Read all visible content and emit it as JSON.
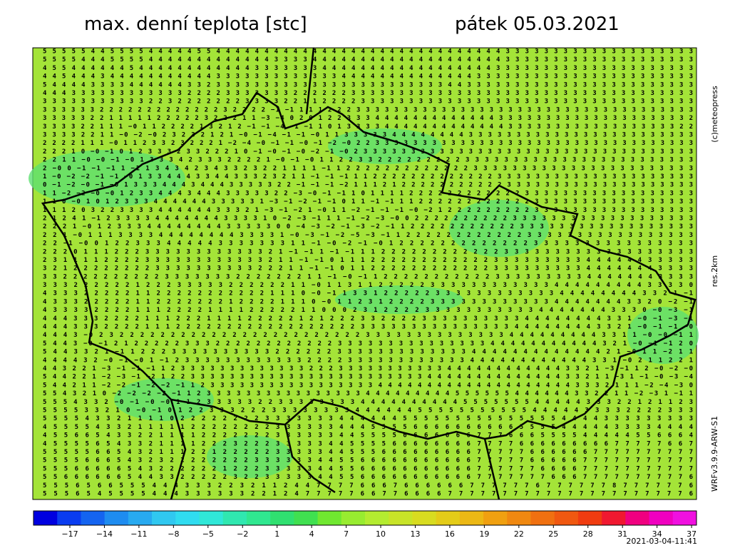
{
  "header": {
    "title": "max. denní teplota [stc]",
    "date": "pátek 05.03.2021"
  },
  "side": {
    "copyright": "(c)meteopress",
    "resolution": "res.2km",
    "model": "WRFv3.9.9-ARW-S1"
  },
  "timestamp": "2021-03-04-11:41",
  "colorbar": {
    "colors": [
      "#0000e0",
      "#0a3cf0",
      "#1464f0",
      "#1e8cf0",
      "#28aaf0",
      "#30c8f0",
      "#30dcf0",
      "#30e8d8",
      "#30e8b0",
      "#30e890",
      "#30e070",
      "#40e050",
      "#70e830",
      "#98ec30",
      "#b4ec30",
      "#c8e428",
      "#d8dc20",
      "#e4cc18",
      "#ecb814",
      "#f0a010",
      "#f08810",
      "#f07010",
      "#f05810",
      "#f03c10",
      "#f01830",
      "#f00080",
      "#f000c0",
      "#f010e0"
    ],
    "labels": [
      "−17",
      "−14",
      "−11",
      "−8",
      "−5",
      "−2",
      "1",
      "4",
      "7",
      "10",
      "13",
      "16",
      "19",
      "22",
      "25",
      "28",
      "31",
      "34",
      "37"
    ]
  },
  "grid": {
    "rows": [
      "5 5 5 5 5 4 4 5 5 5 5 4 4 4 4 4 5 5 4 4 4 4 4 4 4 4 4 4 4 4 4 4 4 4 4 4 4 4 4 4 4 4 4 4 4 4 4 4 3 3 3 3 3 3 3 3 3 3 3 3 3 3 3 3 3 3 3 3",
      "5 5 5 5 4 4 4 5 5 5 5 4 4 4 4 4 4 4 4 4 4 4 4 4 3 3 3 3 4 4 4 4 4 4 4 4 4 4 4 4 4 4 4 4 4 4 4 4 3 3 3 3 3 3 3 3 3 3 3 3 3 3 3 3 3 3 3 3",
      "4 5 5 4 4 4 4 4 4 5 4 4 4 4 4 4 4 4 4 4 4 4 3 3 3 3 3 3 3 4 4 4 4 4 4 4 4 4 4 4 4 4 4 4 4 4 4 3 3 3 3 3 3 3 3 3 3 3 3 3 3 3 3 3 3 3 3 3",
      "4 4 5 4 4 4 3 4 4 4 4 4 4 4 4 4 4 4 3 3 3 3 3 3 3 3 3 3 3 3 3 4 4 4 4 4 4 4 4 4 4 4 4 4 4 3 3 3 3 3 3 3 3 3 3 3 3 3 3 3 3 3 3 3 3 3 3 3",
      "5 4 4 4 4 3 3 3 3 4 4 4 4 4 4 3 3 2 3 3 3 3 3 3 3 3 3 3 3 3 3 3 3 3 3 3 3 3 3 3 3 3 4 4 3 3 3 3 3 3 3 3 3 3 3 3 3 3 3 3 3 3 3 3 3 3 3 3",
      "4 4 4 3 3 3 3 3 3 3 3 3 3 3 3 2 2 2 2 3 3 3 3 3 3 3 2 2 2 2 2 2 3 3 3 3 3 3 3 3 3 3 3 3 3 3 3 3 3 3 3 3 3 3 3 3 3 3 3 3 3 3 3 3 3 3 3 3",
      "3 3 3 3 3 3 3 3 3 3 3 2 2 3 2 2 2 2 2 2 2 3 3 3 3 2 2 1 1 2 2 2 2 3 3 3 3 3 3 3 3 3 3 3 3 3 3 3 3 3 3 3 3 3 3 3 3 3 3 3 3 3 3 3 3 3 3 3",
      "3 3 3 3 3 3 2 2 2 2 2 2 2 2 2 2 2 2 2 3 2 2 2 2 −1 −1 1 1 1 2 2 2 3 3 3 3 3 3 3 3 3 3 3 3 3 3 3 3 3 3 3 3 3 3 3 3 3 3 3 3 3 3 3 3 3 3 3 3",
      "3 3 3 3 3 2 2 1 1 1 1 1 2 2 2 2 2 3 2 2 2 1 1 −3 −4 0 2 0 1 2 2 3 3 3 4 4 4 4 4 4 4 4 4 4 4 4 4 3 3 3 3 3 3 3 3 3 3 3 3 3 3 3 3 3 3 3 3 2",
      "3 3 3 3 2 2 1 1 1 −0 1 1 2 2 2 2 1 3 2 1 2 −1 −1 −4 −1 −1 1 0 1 3 3 3 3 4 4 4 4 4 4 4 4 4 4 4 4 4 3 3 3 3 3 3 3 3 3 3 3 3 3 3 3 3 3 3 2 2",
      "3 3 3 3 2 2 1 1 −0 −2 −0 2 3 2 3 2 1 2 1 −0 −1 −4 −1 −1 −0 1 1 3 3 3 3 3 4 4 4 4 4 4 4 4 3 3 3 3 3 3 3 3 3 3 3 3 3 3 3 3 3 3 3 3 3 3 3 3",
      "2 2 2 2 1 1 1 −0 1 1 2 3 3 2 3 2 2 2 1 −2 −4 −0 −1 −1 −0 −1 −2 −0 2 2 3 3 3 3 3 3 3 3 3 3 3 3 3 3 3 3 3 3 3 3 3 3 3 3 3 3 3 3 3 3 3 3 3 3",
      "2 2 2 1 0 −0 −1 0 1 2 3 3 3 2 3 3 2 2 2 1 0 −1 −0 −1 −0 −2 −1 −0 2 3 3 3 3 3 3 3 3 3 3 3 3 3 3 3 3 3 3 3 3 3 3 3 3 3 3 3 3 3 3 3 3 3 3 3",
      "2 2 1 1 −0 −0 −1 −0 1 3 3 3 4 2 3 3 3 2 2 2 2 1 −0 −1 −0 1 1 2 2 3 3 2 2 2 2 2 2 2 2 2 3 3 3 3 3 3 3 3 3 3 3 3 3 3 3 3 3 3 3 3 3 3 3 3",
      "2 −0 0 −1 −1 −1 1 −1 1 3 4 3 4 2 3 4 3 3 2 3 2 2 1 1 1 1 −1 1 2 2 2 2 2 2 2 2 2 2 2 2 2 3 3 3 3 3 3 3 3 3 3 3 3 3 3 3 3 3 3 3 3 3 3 3",
      "1 −0 −2 −2 −1 −1 −0 1 3 3 4 4 4 3 3 4 4 3 3 3 2 3 2 1 1 −1 −1 −1 1 1 2 2 2 2 2 2 2 2 2 2 2 2 2 3 3 3 3 3 3 3 3 3 3 3 3 3 3 3 3 3 3 3 3 3",
      "0 −1 −2 −0 −1 −0 1 3 3 3 4 4 4 3 4 4 4 3 3 3 3 3 2 2 −1 −1 −1 −2 1 1 1 2 1 2 2 2 2 2 2 2 2 2 2 2 3 3 3 3 3 3 3 3 3 3 3 3 3 3 3 3 3 3 3 3",
      "1 1 −2 −2 −0 −0 1 2 3 3 4 4 4 3 4 4 4 3 3 3 3 3 2 2 −3 −0 −1 −1 1 0 1 1 1 1 2 2 2 2 2 2 2 2 2 2 2 2 3 3 3 3 3 3 3 3 3 3 3 3 3 3 3 3 3 3",
      "1 1 0 −0 1 0 1 2 3 3 3 4 4 4 4 4 4 3 3 3 3 3 1 −3 −1 −2 −1 −1 0 1 1 −1 −1 1 1 2 2 2 2 2 2 2 2 2 2 2 2 3 3 3 3 3 3 3 3 3 3 3 3 3 3 3 3 3",
      "1 1 1 2 0 3 2 2 3 3 3 3 4 4 4 4 4 4 3 3 3 2 1 −3 −1 −2 1 −0 1 1 −2 −1 −1 −1 −0 −2 1 2 2 2 2 2 2 2 2 2 3 3 3 3 3 3 3 3 3 3 3 3 3 3 3 3 3",
      "2 1 2 4 1 −1 2 3 3 3 3 4 4 4 4 4 4 4 3 3 3 3 1 0 −2 −3 −1 1 1 −1 −2 −3 −0 0 2 2 2 2 2 2 2 2 2 2 3 3 3 3 3 3 3 3 3 3 3 3 3 3 3 3 3 3 3",
      "2 2 2 1 −0 1 2 3 3 3 4 4 4 4 4 4 4 4 3 3 3 3 3 0 0 −4 −3 −2 −1 −3 −2 −1 1 2 2 2 2 2 2 2 2 2 2 2 3 3 3 3 3 3 3 3 3 3 3 3 3 3 3 3 3 3",
      "2 2 1 −0 1 1 1 3 3 3 3 4 4 4 4 4 4 4 4 3 3 3 3 1 −0 −3 −1 −2 −5 −3 −1 1 2 2 2 2 2 2 2 2 2 2 2 2 3 3 3 3 3 3 3 3 3 3 3 3 3 3 3 3 3",
      "2 2 −1 −0 0 1 2 2 3 3 3 4 4 4 4 4 3 3 3 3 3 3 3 1 1 −1 −0 −2 −1 −0 1 2 2 2 2 2 2 2 2 2 2 2 2 2 3 3 3 3 3 3 3 3 3 3 3 3 3 3 3 3",
      "2 2 2 0 1 1 1 2 2 2 3 3 3 3 3 3 3 3 3 3 3 3 2 1 −1 −1 1 −1 −1 1 1 2 2 2 2 2 2 2 2 2 2 2 2 3 3 3 3 3 3 3 3 3 3 3 3 3 3 3 3 3 3 3",
      "2 3 1 1 1 1 2 2 2 2 3 3 3 3 3 3 3 3 3 3 3 3 2 1 1 −1 −1 0 1 1 1 2 2 2 2 2 2 2 2 2 2 2 2 3 3 3 3 3 3 3 3 3 4 4 4 4 4 4 3 3 3 3 3",
      "3 2 1 2 2 2 2 2 2 2 2 3 3 3 3 3 3 3 3 3 3 2 2 2 1 1 −1 −1 0 1 1 2 2 2 2 2 2 2 2 2 2 2 2 3 3 3 3 3 3 3 3 3 4 4 4 4 4 4 4 3 3 3 3",
      "3 3 2 2 2 2 2 2 2 2 2 2 3 3 3 3 3 3 3 2 2 2 2 2 2 2 1 1 −1 −0 −1 1 2 2 2 2 2 2 2 2 2 2 2 3 3 3 3 3 3 3 3 3 4 4 4 4 4 4 4 3 3 3 3",
      "3 3 3 2 2 2 2 2 2 1 2 2 2 3 3 3 3 3 2 2 2 2 2 2 1 1 −0 1 1 3 1 1 2 2 2 2 2 3 3 3 3 3 3 3 3 3 3 3 3 4 4 4 4 4 4 4 4 4 3 3 3 3 0",
      "4 3 3 3 2 2 2 2 2 1 1 2 2 2 2 2 2 2 2 2 2 2 1 1 1 0 −0 −1 1 3 3 1 2 2 2 2 2 3 3 3 3 3 3 3 3 3 3 3 3 4 4 4 4 4 4 4 4 3 3 2 1 −1",
      "4 3 3 3 2 2 2 2 2 1 1 2 2 2 2 2 2 2 1 2 2 2 2 1 1 1 0 −0 1 1 2 3 1 2 2 2 2 3 3 3 3 3 3 3 3 3 3 3 3 4 4 4 4 4 4 4 3 3 2 0 −2 −1",
      "4 3 3 3 3 2 2 2 2 1 1 1 2 2 2 2 1 1 1 1 2 2 2 2 2 1 1 0 0 0 2 3 1 2 2 2 2 3 3 3 3 3 3 3 3 3 3 3 4 4 4 4 4 4 4 3 3 3 0 −0 −3 −1",
      "4 4 4 3 3 3 2 2 2 2 1 1 1 2 2 2 1 1 1 1 2 2 2 2 2 1 2 1 2 2 2 3 3 2 2 2 2 3 3 3 3 3 3 3 3 3 3 4 4 4 4 4 4 4 4 3 3 1 −0 −1 −3 −1",
      "4 4 4 3 3 3 2 2 2 2 1 1 1 2 2 2 2 2 2 2 2 2 2 2 2 2 2 2 2 2 2 3 3 3 3 3 3 3 3 3 3 3 3 3 3 3 4 4 4 4 4 4 4 4 3 3 2 1 −0 −1 −1 −0",
      "4 4 4 3 −0 2 3 2 2 2 2 2 2 2 2 2 2 2 2 2 2 2 2 2 2 2 2 2 2 2 2 3 3 3 3 3 3 3 3 3 3 3 3 3 3 4 4 4 4 4 4 4 4 4 3 3 1 1 −0 −0 −1 1",
      "5 4 4 3 −0 −1 2 1 2 2 2 2 2 3 3 3 2 2 2 2 2 2 2 2 2 2 2 2 3 3 3 3 3 3 3 3 3 3 3 3 3 3 3 4 4 4 4 4 4 4 4 4 4 4 3 2 1 −0 −1 −1 2 0",
      "5 4 4 3 3 2 1 −1 1 2 2 2 3 3 3 3 3 3 3 3 3 3 2 2 2 2 2 2 3 3 3 3 3 3 3 3 3 3 3 3 3 4 4 4 4 4 4 4 4 4 4 4 4 4 2 1 −0 1 1 −2 1 1",
      "4 4 4 4 3 2 −0 −1 −0 1 −1 2 3 3 3 3 3 3 3 3 3 3 3 3 2 2 2 2 3 3 3 3 3 3 3 3 3 3 3 3 4 4 4 4 4 4 4 4 4 4 4 4 3 3 1 −0 2 1 1 2 2 1",
      "4 4 3 2 2 1 −3 −1 −1 −1 1 2 3 3 3 3 3 3 3 3 3 3 3 3 3 2 2 2 3 3 3 3 3 3 3 3 3 3 3 4 4 4 4 4 4 4 4 4 4 4 4 3 3 2 1 −3 −1 1 2 −0 −2 −0",
      "5 4 4 2 2 1 −2 −3 −1 −2 1 2 2 3 3 3 3 3 3 3 3 3 3 3 3 3 3 3 3 3 3 3 3 3 3 3 3 4 4 4 4 4 4 4 4 4 4 4 4 4 4 3 3 2 1 1 −3 1 −1 −0 −3 −4",
      "5 4 4 2 1 1 −2 −2 −1 −2 −2 −1 1 2 3 3 3 3 3 3 3 3 3 3 3 3 3 3 3 3 3 4 4 4 4 4 4 4 4 4 4 4 4 4 4 4 4 4 4 4 4 3 3 3 2 1 1 1 −2 −4 −3 0",
      "5 5 4 3 2 1 0 −2 −2 −2 −2 −1 1 2 3 3 3 3 3 3 3 3 3 3 3 3 3 3 3 3 4 4 4 4 4 4 4 4 4 5 5 5 5 5 5 4 4 4 4 4 4 3 3 2 2 1 1 −2 −3 1 −1 1",
      "5 5 5 4 3 3 2 −0 −1 −0 −0 1 1 2 3 3 3 3 3 2 2 3 3 3 3 3 3 3 3 4 4 4 4 4 4 4 4 4 4 5 5 5 5 5 5 5 4 4 4 4 4 3 3 3 2 2 1 2 1 1 2 3",
      "5 5 5 5 3 3 2 1 0 −0 −1 0 1 2 2 3 3 3 2 2 2 3 3 3 3 3 3 3 3 4 4 4 4 4 4 5 5 5 5 5 5 5 5 5 5 5 4 4 4 4 4 3 3 3 3 2 2 2 2 3 3 3",
      "5 5 5 5 4 3 3 2 1 1 1 1 0 2 2 2 2 2 2 2 2 3 3 3 3 3 3 3 4 4 4 4 4 4 5 5 5 5 5 5 5 5 5 5 5 5 5 5 5 4 4 4 4 3 3 3 3 3 3 3 3 3",
      "4 5 5 5 5 4 3 3 2 1 1 1 1 1 2 2 2 2 2 2 2 2 3 3 3 3 3 3 4 4 4 5 5 5 5 6 6 6 6 6 6 6 6 6 6 5 5 5 5 4 4 4 4 4 3 3 3 3 4 4 4 4",
      "4 5 5 6 6 5 4 3 3 2 2 1 1 1 1 2 2 2 2 2 2 2 3 3 3 3 3 3 4 4 5 5 5 5 6 6 6 6 6 6 6 7 7 7 6 6 6 5 5 5 5 4 4 4 4 4 5 5 6 6 6 4",
      "4 5 5 5 5 6 5 4 3 3 2 1 1 1 1 2 2 2 3 2 2 2 3 3 3 3 3 4 4 5 5 5 5 6 6 6 6 6 6 6 6 7 7 7 7 6 6 6 6 6 6 6 6 6 7 7 7 7 7 6 6 7",
      "5 5 5 5 5 6 6 5 4 3 2 1 1 1 2 2 1 2 2 2 2 2 3 3 3 3 3 4 4 5 5 5 6 6 6 6 6 6 6 6 6 7 7 7 7 7 6 6 6 6 6 6 7 7 7 7 7 7 7 7 7 7",
      "5 5 5 5 6 6 6 5 4 3 2 3 2 2 2 2 2 2 2 2 3 3 3 3 3 3 4 4 5 5 6 6 6 6 6 6 6 6 6 6 6 7 7 7 7 7 6 6 6 6 6 7 7 7 7 7 7 7 7 7 7 7",
      "5 5 5 6 6 6 6 6 5 4 3 2 2 2 2 2 2 1 2 2 2 3 3 3 3 3 4 4 5 5 6 6 6 6 6 6 6 6 6 6 6 7 7 7 7 7 7 6 6 6 6 7 7 7 7 7 7 7 7 7 7 7",
      "5 5 6 6 6 6 6 6 5 4 4 3 3 2 2 2 2 2 3 2 2 3 3 3 3 3 4 4 5 5 6 6 6 6 6 6 6 6 6 6 6 7 7 7 7 7 7 7 6 6 6 7 7 7 7 7 7 7 7 7 7 6",
      "5 5 5 6 5 6 6 5 5 5 4 4 4 3 3 3 2 2 3 2 1 1 2 4 4 7 7 7 7 6 6 6 7 6 6 6 6 6 6 7 7 7 7 7 7 6 7 7 7 7 7 7 8 7 7 7 7 7 7 6",
      "5 5 5 6 5 4 5 5 5 5 4 4 4 3 3 3 3 3 3 2 2 1 2 4 7 7 7 7 7 6 6 7 7 6 6 6 6 7 7 7 7 7 7 7 7 7 7 7 7 7 7 7 7 7 7 7 7 7 7 6"
    ]
  }
}
